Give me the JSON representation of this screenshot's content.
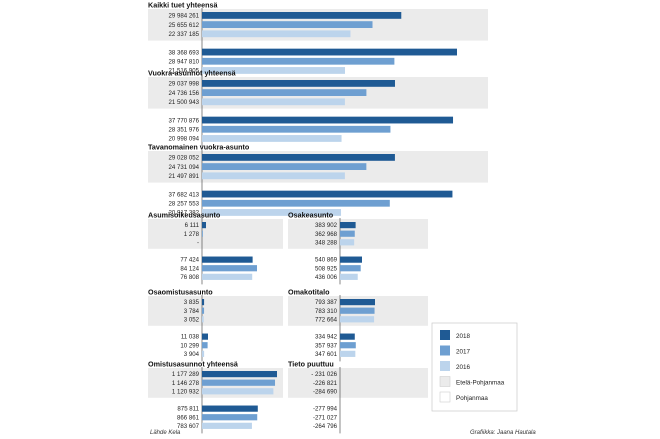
{
  "chart_data": {
    "type": "bar",
    "orientation": "horizontal",
    "series_names": [
      "2018",
      "2017",
      "2016"
    ],
    "group_names": [
      "Etelä-Pohjanmaa",
      "Pohjanmaa"
    ],
    "colors": {
      "2018": "#1f5a94",
      "2017": "#6e9fd1",
      "2016": "#bcd4ec",
      "band": "#ebebeb",
      "axis": "#555555"
    },
    "sections": [
      {
        "title": "Kaikki tuet yhteensä",
        "groups": [
          {
            "labels": [
              "29 984 261",
              "25 655 612",
              "22 337 185"
            ],
            "values": [
              29984261,
              25655612,
              22337185
            ]
          },
          {
            "labels": [
              "38 368 693",
              "28 947 810",
              "21 516 905"
            ],
            "values": [
              38368693,
              28947810,
              21516905
            ]
          }
        ]
      },
      {
        "title": "Vuokra-asunnot yhteensä",
        "groups": [
          {
            "labels": [
              "29 037 998",
              "24 736 156",
              "21 500 943"
            ],
            "values": [
              29037998,
              24736156,
              21500943
            ]
          },
          {
            "labels": [
              "37 770 876",
              "28 351 976",
              "20 998 094"
            ],
            "values": [
              37770876,
              28351976,
              20998094
            ]
          }
        ]
      },
      {
        "title": "Tavanomainen vuokra-asunto",
        "groups": [
          {
            "labels": [
              "29 028 052",
              "24 731 094",
              "21 497 891"
            ],
            "values": [
              29028052,
              24731094,
              21497891
            ]
          },
          {
            "labels": [
              "37 682 413",
              "28 257 553",
              "20 917 382"
            ],
            "values": [
              37682413,
              28257553,
              20917382
            ]
          }
        ]
      },
      {
        "title": "Asumisoikeusasunto",
        "groups": [
          {
            "labels": [
              "6 111",
              "1 278",
              "-"
            ],
            "values": [
              6111,
              1278,
              0
            ]
          },
          {
            "labels": [
              "77 424",
              "84 124",
              "76 808"
            ],
            "values": [
              77424,
              84124,
              76808
            ]
          }
        ]
      },
      {
        "title": "Osakeasunto",
        "groups": [
          {
            "labels": [
              "383 902",
              "362 968",
              "348 288"
            ],
            "values": [
              383902,
              362968,
              348288
            ]
          },
          {
            "labels": [
              "540 869",
              "508 925",
              "436 006"
            ],
            "values": [
              540869,
              508925,
              436006
            ]
          }
        ]
      },
      {
        "title": "Osaomistusasunto",
        "groups": [
          {
            "labels": [
              "3 835",
              "3 784",
              "3 052"
            ],
            "values": [
              3835,
              3784,
              3052
            ]
          },
          {
            "labels": [
              "11 038",
              "10 299",
              "3 904"
            ],
            "values": [
              11038,
              10299,
              3904
            ]
          }
        ]
      },
      {
        "title": "Omakotitalo",
        "groups": [
          {
            "labels": [
              "793 387",
              "783 310",
              "772 664"
            ],
            "values": [
              793387,
              783310,
              772664
            ]
          },
          {
            "labels": [
              "334 942",
              "357 937",
              "347 601"
            ],
            "values": [
              334942,
              357937,
              347601
            ]
          }
        ]
      },
      {
        "title": "Omistusasunnot yhteensä",
        "groups": [
          {
            "labels": [
              "1 177 289",
              "1 146 278",
              "1 120 932"
            ],
            "values": [
              1177289,
              1146278,
              1120932
            ]
          },
          {
            "labels": [
              "875 811",
              "866 861",
              "783 607"
            ],
            "values": [
              875811,
              866861,
              783607
            ]
          }
        ]
      },
      {
        "title": "Tieto puuttuu",
        "groups": [
          {
            "labels": [
              "- 231 026",
              "-226 821",
              "-284 690"
            ],
            "values": [
              -231026,
              -226821,
              -284690
            ]
          },
          {
            "labels": [
              "-277 994",
              "-271 027",
              "-264 796"
            ],
            "values": [
              -277994,
              -271027,
              -264796
            ]
          }
        ]
      }
    ],
    "source": "Lähde Kela",
    "credit": "Grafiikka: Jaana Hautala"
  }
}
